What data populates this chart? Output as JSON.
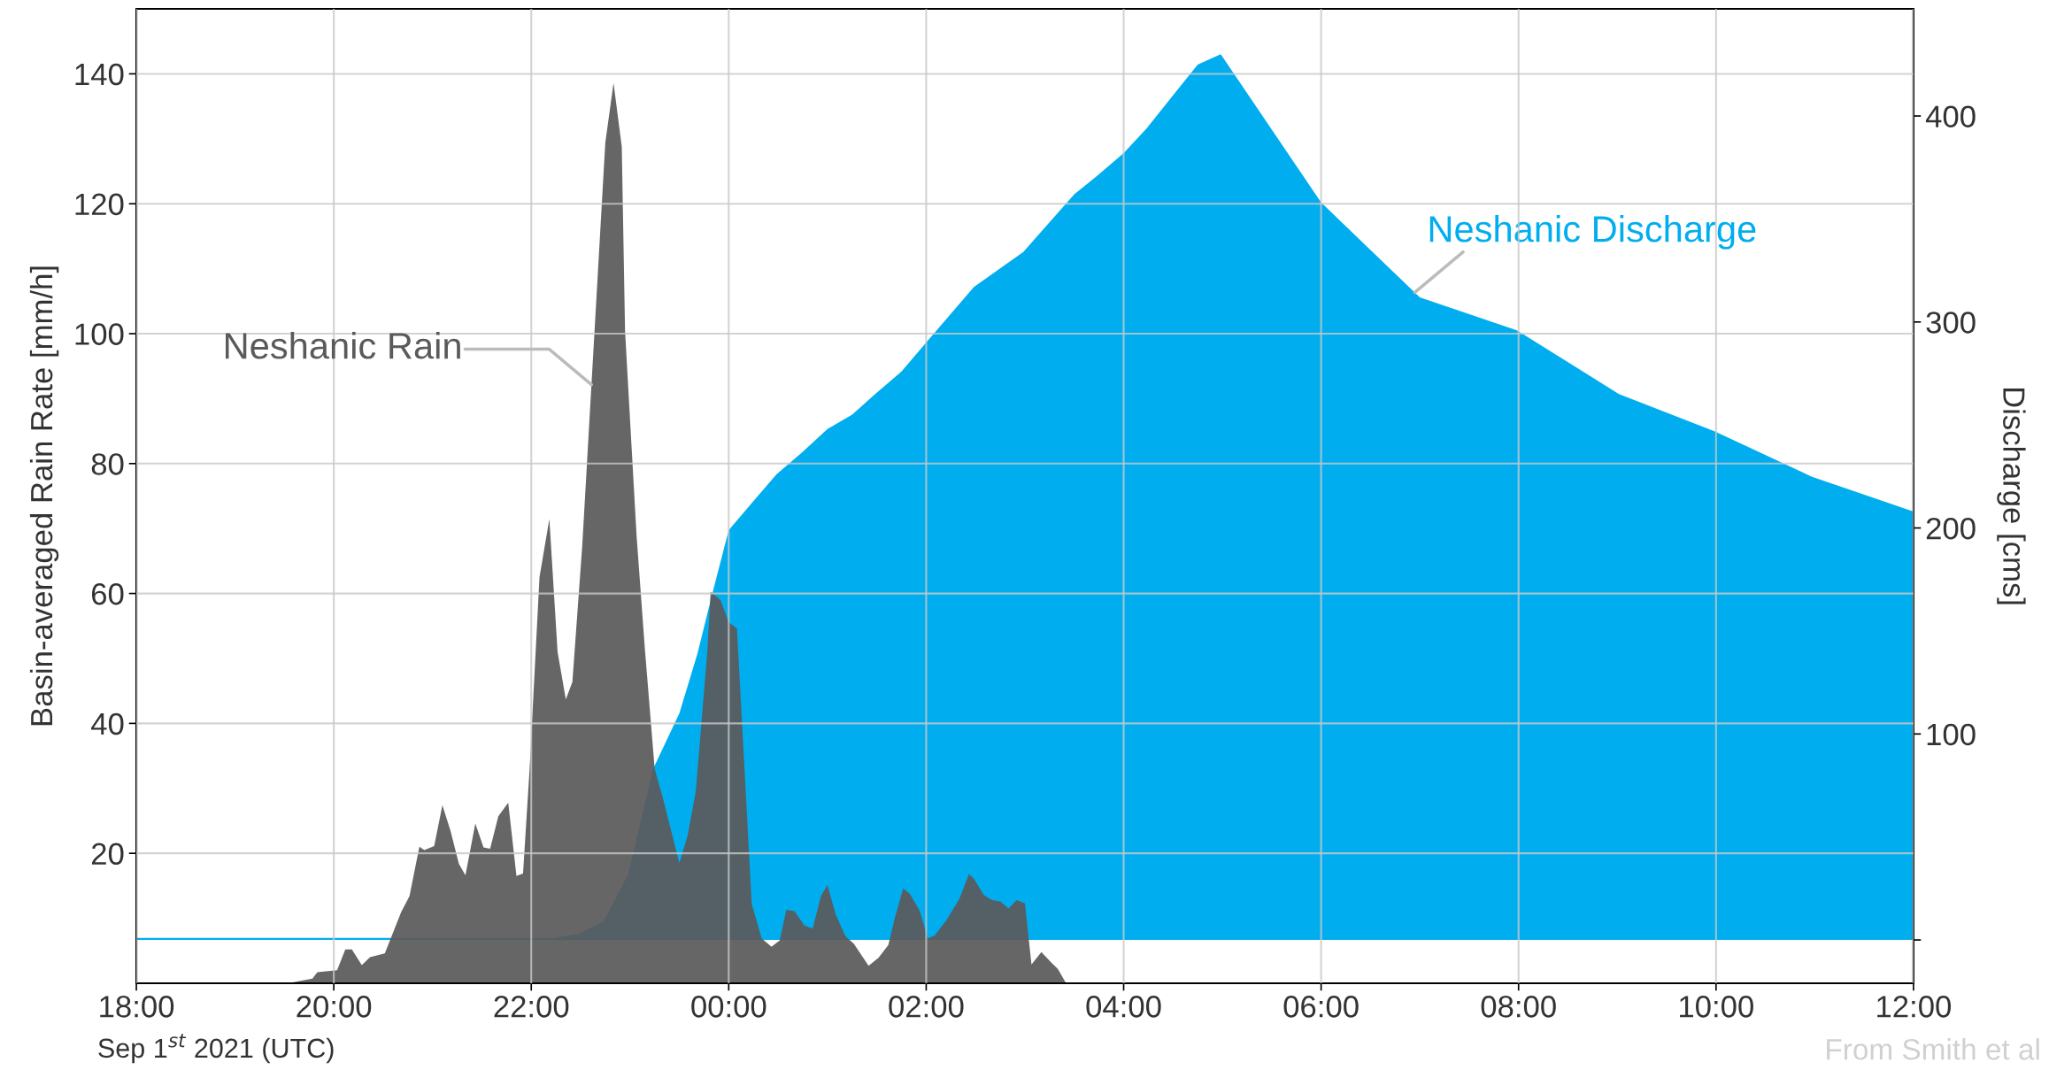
{
  "chart_data": {
    "type": "area",
    "xlabel": "Sep 1$^{st}$ 2021 (UTC)",
    "ylabel": "Basin-averaged Rain Rate [mm/h]",
    "y2label": "Discharge [cms]",
    "xlim": [
      "2021-09-01T18:00",
      "2021-09-02T12:00"
    ],
    "xticks": [
      {
        "value": "2021-09-01T18:00",
        "label": "18:00"
      },
      {
        "value": "2021-09-01T20:00",
        "label": "20:00"
      },
      {
        "value": "2021-09-01T22:00",
        "label": "22:00"
      },
      {
        "value": "2021-09-02T00:00",
        "label": "00:00"
      },
      {
        "value": "2021-09-02T02:00",
        "label": "02:00"
      },
      {
        "value": "2021-09-02T04:00",
        "label": "04:00"
      },
      {
        "value": "2021-09-02T06:00",
        "label": "06:00"
      },
      {
        "value": "2021-09-02T08:00",
        "label": "08:00"
      },
      {
        "value": "2021-09-02T10:00",
        "label": "10:00"
      },
      {
        "value": "2021-09-02T12:00",
        "label": "12:00"
      }
    ],
    "ylim": [
      0,
      150
    ],
    "yticks": [
      20,
      40,
      60,
      80,
      100,
      120,
      140
    ],
    "y2lim": [
      -21,
      452
    ],
    "y2ticks": [
      {
        "value": 0,
        "label": null
      },
      100,
      200,
      300,
      400
    ],
    "grid": true,
    "series": [
      {
        "name": "Neshanic Discharge",
        "color": "#00aeef",
        "axis": "y2",
        "x": [
          "2021-09-01T18:00",
          "2021-09-01T22:00",
          "2021-09-01T22:14",
          "2021-09-01T22:29",
          "2021-09-01T22:44",
          "2021-09-01T22:59",
          "2021-09-01T23:14",
          "2021-09-01T23:30",
          "2021-09-01T23:41",
          "2021-09-01T23:50",
          "2021-09-02T00:00",
          "2021-09-02T00:15",
          "2021-09-02T00:29",
          "2021-09-02T00:45",
          "2021-09-02T01:00",
          "2021-09-02T01:15",
          "2021-09-02T01:29",
          "2021-09-02T01:45",
          "2021-09-02T02:00",
          "2021-09-02T02:29",
          "2021-09-02T02:59",
          "2021-09-02T03:30",
          "2021-09-02T03:44",
          "2021-09-02T04:00",
          "2021-09-02T04:14",
          "2021-09-02T04:30",
          "2021-09-02T04:45",
          "2021-09-02T04:59",
          "2021-09-02T06:00",
          "2021-09-02T07:00",
          "2021-09-02T07:59",
          "2021-09-02T09:01",
          "2021-09-02T09:59",
          "2021-09-02T10:58",
          "2021-09-02T12:00"
        ],
        "values": [
          1,
          1,
          1,
          3,
          9,
          32,
          83,
          110,
          139,
          168,
          199,
          213,
          226,
          237,
          248,
          255,
          265,
          276,
          290,
          317,
          334,
          362,
          371,
          382,
          394,
          410,
          425,
          430,
          358,
          312,
          296,
          265,
          247,
          225,
          208
        ]
      },
      {
        "name": "Neshanic Rain",
        "color": "#5a5a5a",
        "x": [
          "2021-09-01T18:00",
          "2021-09-01T19:32",
          "2021-09-01T19:47",
          "2021-09-01T19:50",
          "2021-09-01T19:58",
          "2021-09-01T20:02",
          "2021-09-01T20:07",
          "2021-09-01T20:11",
          "2021-09-01T20:17",
          "2021-09-01T20:22",
          "2021-09-01T20:31",
          "2021-09-01T20:41",
          "2021-09-01T20:46",
          "2021-09-01T20:52",
          "2021-09-01T20:55",
          "2021-09-01T21:01",
          "2021-09-01T21:06",
          "2021-09-01T21:11",
          "2021-09-01T21:16",
          "2021-09-01T21:20",
          "2021-09-01T21:26",
          "2021-09-01T21:31",
          "2021-09-01T21:35",
          "2021-09-01T21:40",
          "2021-09-01T21:46",
          "2021-09-01T21:51",
          "2021-09-01T21:55",
          "2021-09-01T21:59",
          "2021-09-01T22:05",
          "2021-09-01T22:11",
          "2021-09-01T22:16",
          "2021-09-01T22:21",
          "2021-09-01T22:25",
          "2021-09-01T22:31",
          "2021-09-01T22:45",
          "2021-09-01T22:50",
          "2021-09-01T22:55",
          "2021-09-01T22:57",
          "2021-09-01T23:04",
          "2021-09-01T23:09",
          "2021-09-01T23:15",
          "2021-09-01T23:20",
          "2021-09-01T23:30",
          "2021-09-01T23:35",
          "2021-09-01T23:40",
          "2021-09-01T23:47",
          "2021-09-01T23:49",
          "2021-09-01T23:55",
          "2021-09-02T00:00",
          "2021-09-02T00:05",
          "2021-09-02T00:14",
          "2021-09-02T00:20",
          "2021-09-02T00:26",
          "2021-09-02T00:31",
          "2021-09-02T00:35",
          "2021-09-02T00:40",
          "2021-09-02T00:46",
          "2021-09-02T00:51",
          "2021-09-02T00:56",
          "2021-09-02T01:00",
          "2021-09-02T01:05",
          "2021-09-02T01:11",
          "2021-09-02T01:16",
          "2021-09-02T01:25",
          "2021-09-02T01:31",
          "2021-09-02T01:37",
          "2021-09-02T01:41",
          "2021-09-02T01:46",
          "2021-09-02T01:50",
          "2021-09-02T01:56",
          "2021-09-02T02:01",
          "2021-09-02T02:05",
          "2021-09-02T02:12",
          "2021-09-02T02:20",
          "2021-09-02T02:26",
          "2021-09-02T02:29",
          "2021-09-02T02:35",
          "2021-09-02T02:40",
          "2021-09-02T02:45",
          "2021-09-02T02:50",
          "2021-09-02T02:55",
          "2021-09-02T03:00",
          "2021-09-02T03:04",
          "2021-09-02T03:10",
          "2021-09-02T03:16",
          "2021-09-02T03:20",
          "2021-09-02T03:25",
          "2021-09-02T12:00"
        ],
        "values": [
          0,
          0,
          0.7,
          1.7,
          1.9,
          2.0,
          5.2,
          5.2,
          2.8,
          4.0,
          4.6,
          11.0,
          13.4,
          21.0,
          20.5,
          21.1,
          27.4,
          23.4,
          18.4,
          16.6,
          24.6,
          20.9,
          20.7,
          25.7,
          27.8,
          16.5,
          16.9,
          33,
          62.5,
          71.5,
          51.0,
          43.7,
          46.4,
          67.4,
          129.4,
          138.6,
          128.8,
          100.4,
          68.9,
          51.6,
          33.0,
          28.5,
          18.5,
          22.7,
          29.6,
          51.1,
          60.3,
          59.0,
          55.6,
          54.6,
          12.2,
          6.9,
          5.6,
          6.6,
          11.3,
          11.1,
          8.9,
          8.4,
          13.4,
          15.1,
          10.6,
          7.2,
          6.1,
          2.7,
          3.9,
          5.9,
          10.1,
          14.6,
          13.8,
          11.2,
          6.9,
          7.3,
          9.6,
          12.9,
          16.8,
          16.1,
          13.6,
          12.8,
          12.6,
          11.5,
          12.8,
          12.3,
          2.9,
          4.8,
          3.2,
          2.2,
          0,
          0
        ]
      }
    ],
    "annotations": [
      "From Smith et al"
    ]
  }
}
